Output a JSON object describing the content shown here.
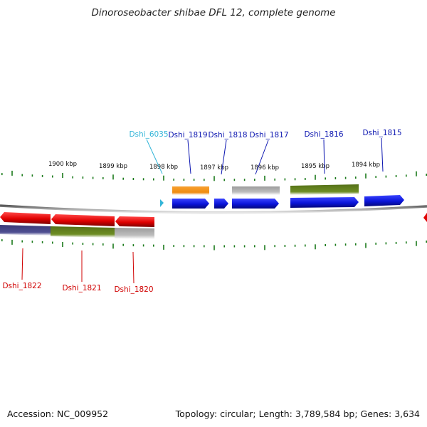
{
  "title": "Dinoroseobacter shibae DFL 12, complete genome",
  "footer": {
    "accession": "Accession: NC_009952",
    "summary": "Topology: circular; Length: 3,789,584 bp; Genes: 3,634"
  },
  "colors": {
    "backbone": "#8a8a8a",
    "tick": "#1a7a1a",
    "forward_gene": "#0a14d8",
    "reverse_gene": "#e00000",
    "forward_label": "#0a14b0",
    "reverse_label": "#d00000",
    "rna_label": "#33b5d8",
    "cog_orange": "#f08c10",
    "cog_gray": "#b4b4b4",
    "cog_olive": "#6a8a22",
    "cog_navy": "#4a4a8c"
  },
  "scale_labels": [
    "1900 kbp",
    "1899 kbp",
    "1898 kbp",
    "1897 kbp",
    "1896 kbp",
    "1895 kbp",
    "1894 kbp"
  ],
  "genes_forward": [
    {
      "name": "Dshi_6035",
      "color": "rna_label"
    },
    {
      "name": "Dshi_1819",
      "color": "forward_label"
    },
    {
      "name": "Dshi_1818",
      "color": "forward_label"
    },
    {
      "name": "Dshi_1817",
      "color": "forward_label"
    },
    {
      "name": "Dshi_1816",
      "color": "forward_label"
    },
    {
      "name": "Dshi_1815",
      "color": "forward_label"
    }
  ],
  "genes_reverse": [
    {
      "name": "Dshi_1822",
      "color": "reverse_label"
    },
    {
      "name": "Dshi_1821",
      "color": "reverse_label"
    },
    {
      "name": "Dshi_1820",
      "color": "reverse_label"
    }
  ]
}
